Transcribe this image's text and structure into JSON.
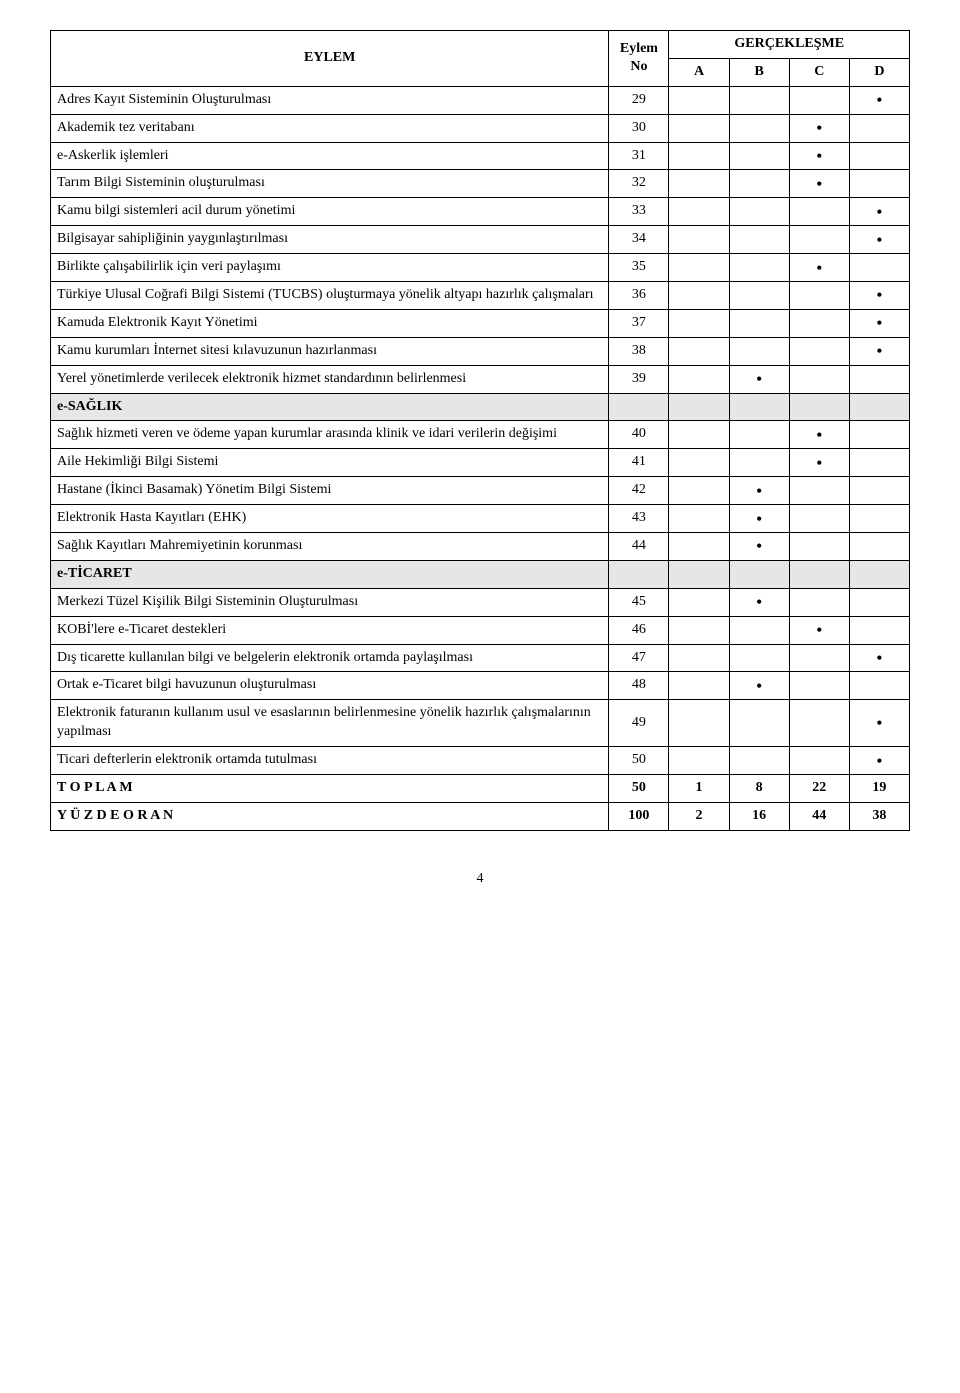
{
  "headers": {
    "eylem": "EYLEM",
    "eylem_no": "Eylem\nNo",
    "gercek": "GERÇEKLEŞME",
    "A": "A",
    "B": "B",
    "C": "C",
    "D": "D"
  },
  "rows": [
    {
      "type": "row",
      "label": "Adres Kayıt Sisteminin Oluşturulması",
      "no": "29",
      "mark": "D"
    },
    {
      "type": "row",
      "label": "Akademik tez veritabanı",
      "no": "30",
      "mark": "C"
    },
    {
      "type": "row",
      "label": "e-Askerlik işlemleri",
      "no": "31",
      "mark": "C"
    },
    {
      "type": "row",
      "label": "Tarım Bilgi Sisteminin oluşturulması",
      "no": "32",
      "mark": "C"
    },
    {
      "type": "row",
      "label": "Kamu bilgi sistemleri acil durum yönetimi",
      "no": "33",
      "mark": "D"
    },
    {
      "type": "row",
      "label": "Bilgisayar sahipliğinin yaygınlaştırılması",
      "no": "34",
      "mark": "D"
    },
    {
      "type": "row",
      "label": "Birlikte çalışabilirlik için veri paylaşımı",
      "no": "35",
      "mark": "C"
    },
    {
      "type": "row",
      "label": "Türkiye Ulusal Coğrafi Bilgi Sistemi (TUCBS) oluşturmaya yönelik altyapı hazırlık çalışmaları",
      "no": "36",
      "mark": "D"
    },
    {
      "type": "row",
      "label": "Kamuda Elektronik Kayıt Yönetimi",
      "no": "37",
      "mark": "D"
    },
    {
      "type": "row",
      "label": "Kamu kurumları İnternet sitesi kılavuzunun hazırlanması",
      "no": "38",
      "mark": "D"
    },
    {
      "type": "row",
      "label": "Yerel yönetimlerde verilecek elektronik hizmet standardının belirlenmesi",
      "no": "39",
      "mark": "B"
    },
    {
      "type": "section",
      "label": "e-SAĞLIK"
    },
    {
      "type": "row",
      "label": "Sağlık hizmeti veren ve ödeme yapan kurumlar arasında klinik ve idari verilerin değişimi",
      "no": "40",
      "mark": "C"
    },
    {
      "type": "row",
      "label": "Aile Hekimliği Bilgi Sistemi",
      "no": "41",
      "mark": "C"
    },
    {
      "type": "row",
      "label": "Hastane (İkinci Basamak) Yönetim Bilgi Sistemi",
      "no": "42",
      "mark": "B"
    },
    {
      "type": "row",
      "label": "Elektronik Hasta Kayıtları (EHK)",
      "no": "43",
      "mark": "B"
    },
    {
      "type": "row",
      "label": "Sağlık Kayıtları Mahremiyetinin korunması",
      "no": "44",
      "mark": "B"
    },
    {
      "type": "section",
      "label": "e-TİCARET"
    },
    {
      "type": "row",
      "label": "Merkezi Tüzel Kişilik Bilgi Sisteminin Oluşturulması",
      "no": "45",
      "mark": "B"
    },
    {
      "type": "row",
      "label": "KOBİ'lere e-Ticaret destekleri",
      "no": "46",
      "mark": "C"
    },
    {
      "type": "row",
      "label": "Dış ticarette kullanılan bilgi ve belgelerin elektronik ortamda paylaşılması",
      "no": "47",
      "mark": "D"
    },
    {
      "type": "row",
      "label": "Ortak e-Ticaret bilgi havuzunun oluşturulması",
      "no": "48",
      "mark": "B"
    },
    {
      "type": "row",
      "label": "Elektronik faturanın kullanım usul ve esaslarının belirlenmesine yönelik hazırlık çalışmalarının yapılması",
      "no": "49",
      "mark": "D"
    },
    {
      "type": "row",
      "label": "Ticari defterlerin elektronik ortamda tutulması",
      "no": "50",
      "mark": "D"
    }
  ],
  "totals": {
    "toplam_label": "T O P L A M",
    "toplam": {
      "no": "50",
      "A": "1",
      "B": "8",
      "C": "22",
      "D": "19"
    },
    "yuzde_label": "Y Ü Z D E    O R A N",
    "yuzde": {
      "no": "100",
      "A": "2",
      "B": "16",
      "C": "44",
      "D": "38"
    }
  },
  "page_number": "4",
  "style": {
    "marker": "•",
    "section_bg": "#e6e6e6",
    "border_color": "#000000",
    "bg": "#ffffff"
  }
}
